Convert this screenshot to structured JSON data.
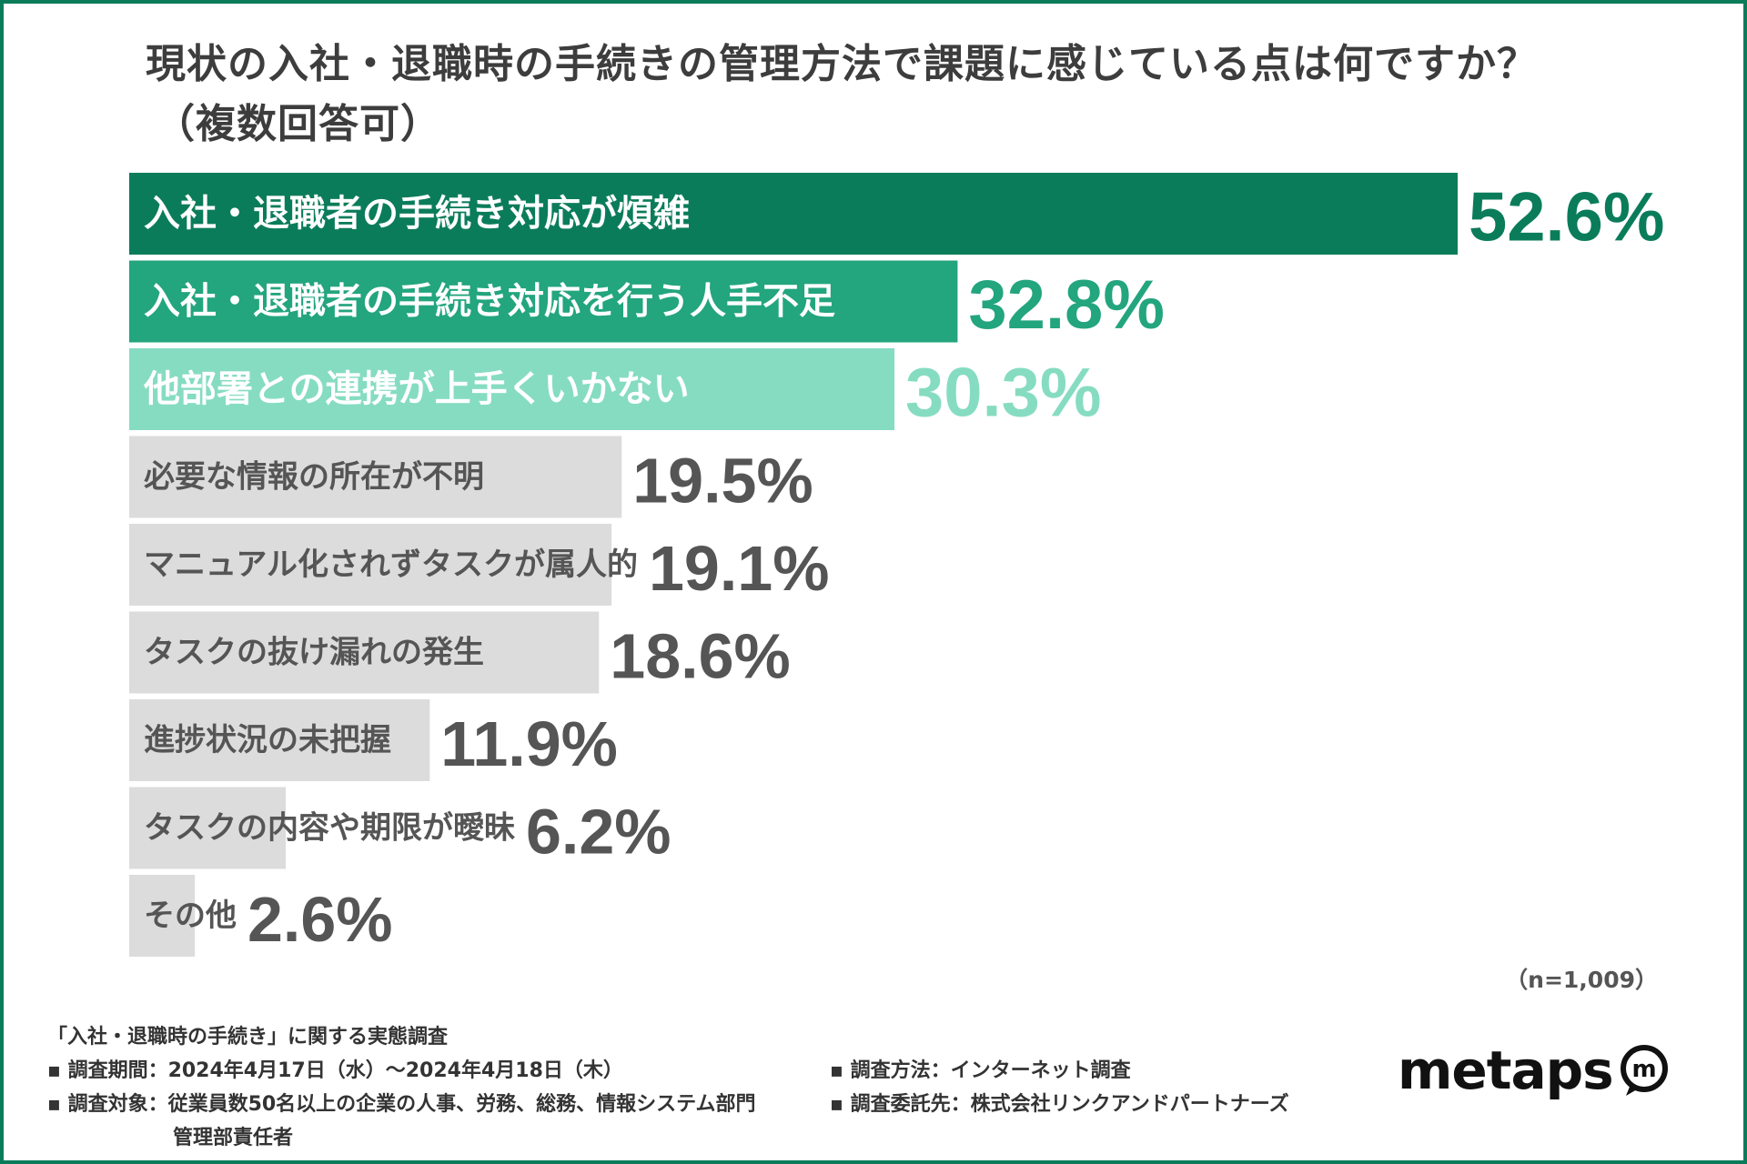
{
  "title": {
    "line1": "現状の入社・退職時の手続きの管理方法で課題に感じている点は何ですか？",
    "line2": "（複数回答可）"
  },
  "chart_data": {
    "type": "bar",
    "orientation": "horizontal",
    "categories": [
      "入社・退職者の手続き対応が煩雑",
      "入社・退職者の手続き対応を行う人手不足",
      "他部署との連携が上手くいかない",
      "必要な情報の所在が不明",
      "マニュアル化されずタスクが属人的",
      "タスクの抜け漏れの発生",
      "進捗状況の未把握",
      "タスクの内容や期限が曖昧",
      "その他"
    ],
    "values": [
      52.6,
      32.8,
      30.3,
      19.5,
      19.1,
      18.6,
      11.9,
      6.2,
      2.6
    ],
    "value_labels": [
      "52.6%",
      "32.8%",
      "30.3%",
      "19.5%",
      "19.1%",
      "18.6%",
      "11.9%",
      "6.2%",
      "2.6%"
    ],
    "xlim": [
      0,
      52.6
    ],
    "grid": false,
    "colors": {
      "top1_bar": "#0b7c5a",
      "top2_bar": "#23a57e",
      "top3_bar": "#86dcc1",
      "other_bar": "#dcdcdc",
      "top1_value": "#0b7c5a",
      "top2_value": "#23a57e",
      "top3_value": "#86dcc1",
      "other_value": "#555555",
      "top_label": "#ffffff",
      "other_label": "#555555"
    }
  },
  "n_note": "（n=1,009）",
  "footer": {
    "survey_title": "「入社・退職時の手続き」に関する実態調査",
    "period": "▪ 調査期間：2024年4月17日（水）〜2024年4月18日（木）",
    "target": "▪ 調査対象：従業員数50名以上の企業の人事、労務、総務、情報システム部門",
    "target_cont": "管理部責任者",
    "method": "▪ 調査方法：インターネット調査",
    "client": "▪ 調査委託先：株式会社リンクアンドパートナーズ"
  },
  "logo": {
    "text": "metaps",
    "mark": "m"
  }
}
